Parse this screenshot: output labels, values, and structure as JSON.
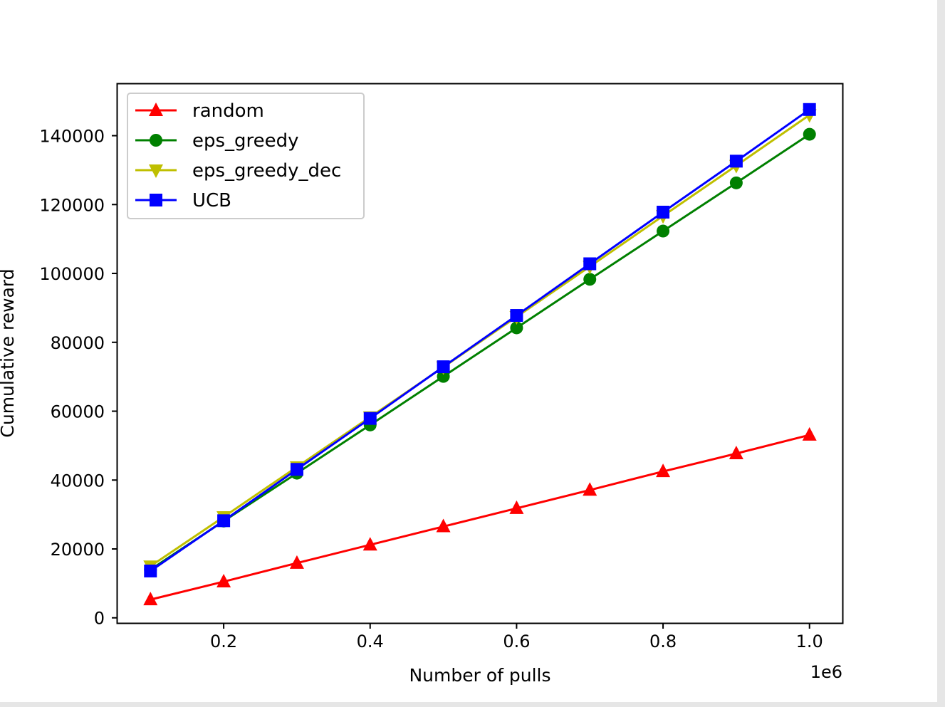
{
  "chart_data": {
    "type": "line",
    "title": "",
    "xlabel": "Number of pulls",
    "ylabel": "Cumulative reward",
    "x_offset_label": "1e6",
    "x": [
      0.1,
      0.2,
      0.3,
      0.4,
      0.5,
      0.6,
      0.7,
      0.8,
      0.9,
      1.0
    ],
    "xlim": [
      0.055,
      1.045
    ],
    "ylim": [
      -1500,
      155000
    ],
    "x_ticks": [
      0.2,
      0.4,
      0.6,
      0.8,
      1.0
    ],
    "x_tick_labels": [
      "0.2",
      "0.4",
      "0.6",
      "0.8",
      "1.0"
    ],
    "y_ticks": [
      0,
      20000,
      40000,
      60000,
      80000,
      100000,
      120000,
      140000
    ],
    "y_tick_labels": [
      "0",
      "20000",
      "40000",
      "60000",
      "80000",
      "100000",
      "120000",
      "140000"
    ],
    "grid": false,
    "legend_position": "top-left",
    "series": [
      {
        "name": "random",
        "color": "#ff0000",
        "marker": "triangle-up",
        "values": [
          5300,
          10500,
          15900,
          21200,
          26500,
          31800,
          37100,
          42500,
          47700,
          53100
        ]
      },
      {
        "name": "eps_greedy",
        "color": "#008000",
        "marker": "circle",
        "values": [
          14000,
          28100,
          42000,
          56000,
          70100,
          84200,
          98300,
          112300,
          126300,
          140400
        ]
      },
      {
        "name": "eps_greedy_dec",
        "color": "#bfbf00",
        "marker": "triangle-down",
        "values": [
          15000,
          29300,
          43800,
          58300,
          72800,
          87400,
          102000,
          116700,
          131300,
          146000
        ]
      },
      {
        "name": "UCB",
        "color": "#0000ff",
        "marker": "square",
        "values": [
          13600,
          28200,
          43100,
          57900,
          72900,
          87800,
          102800,
          117800,
          132600,
          147600
        ]
      }
    ]
  }
}
